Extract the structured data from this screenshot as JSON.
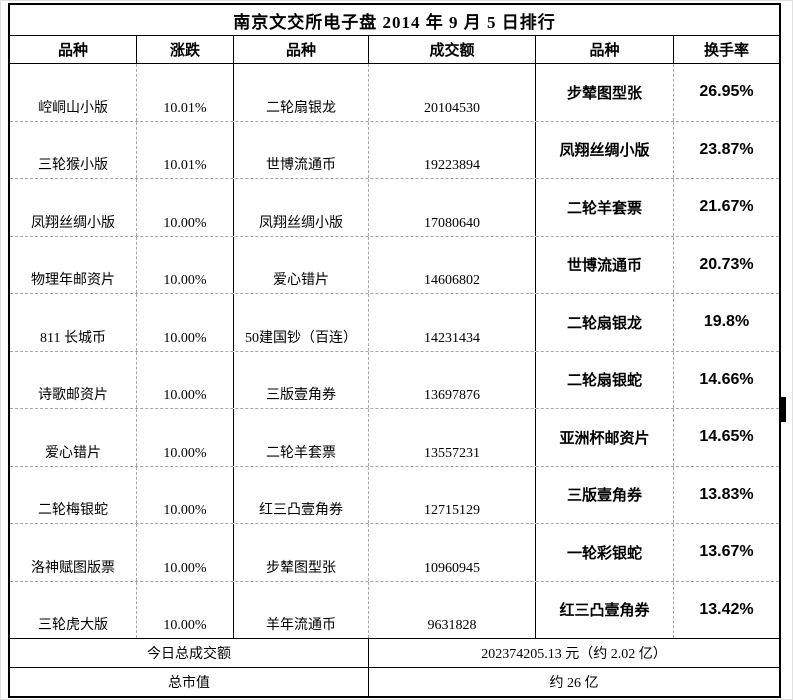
{
  "title": "南京文交所电子盘 2014 年 9 月 5 日排行",
  "columns": [
    "品种",
    "涨跌",
    "品种",
    "成交额",
    "品种",
    "换手率"
  ],
  "rows": [
    {
      "v1": "崆峒山小版",
      "chg": "10.01%",
      "v2": "二轮扇银龙",
      "amt": "20104530",
      "v3": "步辇图型张",
      "turn": "26.95%"
    },
    {
      "v1": "三轮猴小版",
      "chg": "10.01%",
      "v2": "世博流通币",
      "amt": "19223894",
      "v3": "凤翔丝绸小版",
      "turn": "23.87%"
    },
    {
      "v1": "凤翔丝绸小版",
      "chg": "10.00%",
      "v2": "凤翔丝绸小版",
      "amt": "17080640",
      "v3": "二轮羊套票",
      "turn": "21.67%"
    },
    {
      "v1": "物理年邮资片",
      "chg": "10.00%",
      "v2": "爱心错片",
      "amt": "14606802",
      "v3": "世博流通币",
      "turn": "20.73%"
    },
    {
      "v1": "811 长城币",
      "chg": "10.00%",
      "v2": "50建国钞（百连）",
      "amt": "14231434",
      "v3": "二轮扇银龙",
      "turn": "19.8%"
    },
    {
      "v1": "诗歌邮资片",
      "chg": "10.00%",
      "v2": "三版壹角券",
      "amt": "13697876",
      "v3": "二轮扇银蛇",
      "turn": "14.66%"
    },
    {
      "v1": "爱心错片",
      "chg": "10.00%",
      "v2": "二轮羊套票",
      "amt": "13557231",
      "v3": "亚洲杯邮资片",
      "turn": "14.65%"
    },
    {
      "v1": "二轮梅银蛇",
      "chg": "10.00%",
      "v2": "红三凸壹角券",
      "amt": "12715129",
      "v3": "三版壹角券",
      "turn": "13.83%"
    },
    {
      "v1": "洛神赋图版票",
      "chg": "10.00%",
      "v2": "步辇图型张",
      "amt": "10960945",
      "v3": "一轮彩银蛇",
      "turn": "13.67%"
    },
    {
      "v1": "三轮虎大版",
      "chg": "10.00%",
      "v2": "羊年流通币",
      "amt": "9631828",
      "v3": "红三凸壹角券",
      "turn": "13.42%"
    }
  ],
  "summary": {
    "rows": [
      {
        "label": "今日总成交额",
        "value": "202374205.13 元（约 2.02 亿）"
      },
      {
        "label": "总市值",
        "value": "约 26 亿"
      }
    ]
  },
  "colors": {
    "border": "#000000",
    "dashed_divider": "#a6a6a6",
    "text": "#000000",
    "background": "#ffffff"
  }
}
